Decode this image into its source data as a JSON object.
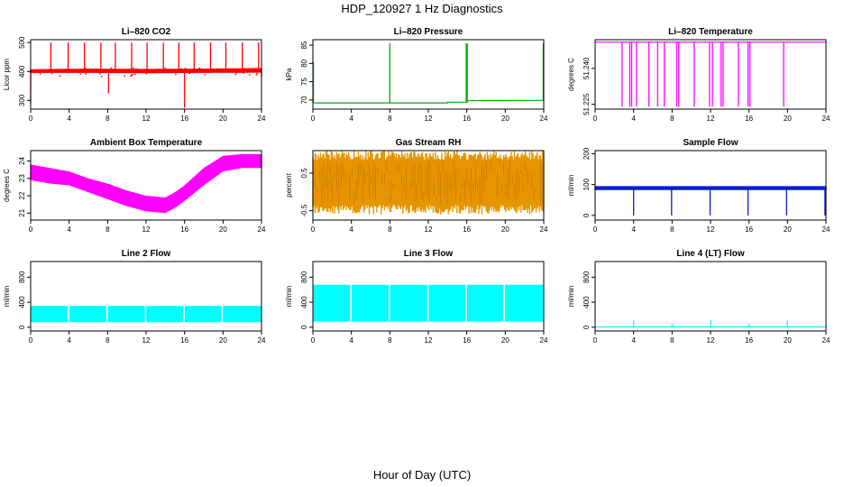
{
  "page_title": "HDP_120927  1 Hz Diagnostics",
  "x_axis_label": "Hour of Day (UTC)",
  "chart_data": [
    {
      "id": "co2",
      "type": "line",
      "title": "Li–820 CO2",
      "ylabel": "Licor ppm",
      "color": "#ff0000",
      "xlim": [
        0,
        24
      ],
      "ylim": [
        270,
        510
      ],
      "xticks": [
        0,
        4,
        8,
        12,
        16,
        20,
        24
      ],
      "yticks": [
        300,
        400,
        500
      ],
      "ytick_labels": [
        "300",
        "400",
        "500"
      ],
      "series": [
        {
          "name": "baseline",
          "kind": "band",
          "x": [
            0,
            6,
            12,
            18,
            24
          ],
          "lo": [
            395,
            395,
            394,
            395,
            396
          ],
          "hi": [
            408,
            410,
            409,
            410,
            412
          ]
        },
        {
          "name": "spikes",
          "kind": "spikes",
          "x": [
            0.0,
            2.1,
            3.9,
            5.6,
            7.3,
            8.1,
            8.8,
            10.5,
            12.1,
            13.8,
            15.4,
            16.0,
            17.0,
            18.7,
            20.3,
            22.0,
            23.7,
            24.0
          ],
          "base": [
            400,
            400,
            400,
            400,
            400,
            400,
            400,
            400,
            400,
            400,
            400,
            400,
            400,
            400,
            400,
            400,
            400,
            400
          ],
          "peak": [
            290,
            500,
            500,
            500,
            500,
            325,
            500,
            500,
            500,
            500,
            500,
            275,
            500,
            500,
            500,
            500,
            500,
            380
          ]
        }
      ]
    },
    {
      "id": "pressure",
      "type": "line",
      "title": "Li–820 Pressure",
      "ylabel": "kPa",
      "color": "#00aa00",
      "xlim": [
        0,
        24
      ],
      "ylim": [
        67.5,
        86.5
      ],
      "xticks": [
        0,
        4,
        8,
        12,
        16,
        20,
        24
      ],
      "yticks": [
        70,
        75,
        80,
        85
      ],
      "ytick_labels": [
        "70",
        "75",
        "80",
        "85"
      ],
      "series": [
        {
          "name": "level",
          "kind": "line",
          "x": [
            0.1,
            14.0,
            14.0,
            16.0,
            16.0,
            24.0
          ],
          "y": [
            69.2,
            69.2,
            69.4,
            69.4,
            69.8,
            69.9
          ]
        },
        {
          "name": "spikes",
          "kind": "spikes",
          "x": [
            0.05,
            8.0,
            15.95,
            16.05,
            23.95
          ],
          "base": [
            69.2,
            69.2,
            69.4,
            69.4,
            69.9
          ],
          "peak": [
            80.5,
            85.5,
            85.5,
            85.5,
            85.5
          ]
        }
      ]
    },
    {
      "id": "licor_temp",
      "type": "line",
      "title": "Li–820 Temperature",
      "ylabel": "degrees C",
      "color": "#ff00ff",
      "xlim": [
        0,
        24
      ],
      "ylim": [
        51.223,
        51.252
      ],
      "xticks": [
        0,
        4,
        8,
        12,
        16,
        20,
        24
      ],
      "yticks": [
        51.225,
        51.24
      ],
      "ytick_labels": [
        "51.225",
        "51.240"
      ],
      "series": [
        {
          "name": "level",
          "kind": "line",
          "x": [
            0,
            24
          ],
          "y": [
            51.251,
            51.251
          ]
        },
        {
          "name": "dips",
          "kind": "spikes",
          "x": [
            2.8,
            3.6,
            3.8,
            4.3,
            5.6,
            6.5,
            7.2,
            8.5,
            8.7,
            10.3,
            11.9,
            12.2,
            13.1,
            13.3,
            14.9,
            15.9,
            16.1,
            19.6
          ],
          "base": [
            51.251,
            51.251,
            51.251,
            51.251,
            51.251,
            51.251,
            51.251,
            51.251,
            51.251,
            51.251,
            51.251,
            51.251,
            51.251,
            51.251,
            51.251,
            51.251,
            51.251,
            51.251
          ],
          "peak": [
            51.224,
            51.224,
            51.224,
            51.224,
            51.224,
            51.224,
            51.224,
            51.224,
            51.224,
            51.224,
            51.224,
            51.224,
            51.224,
            51.224,
            51.224,
            51.224,
            51.224,
            51.224
          ]
        }
      ]
    },
    {
      "id": "ambient",
      "type": "line",
      "title": "Ambient Box Temperature",
      "ylabel": "degrees C",
      "color": "#ff00ff",
      "xlim": [
        0,
        24
      ],
      "ylim": [
        20.6,
        24.6
      ],
      "xticks": [
        0,
        4,
        8,
        12,
        16,
        20,
        24
      ],
      "yticks": [
        21,
        22,
        23,
        24
      ],
      "ytick_labels": [
        "21",
        "22",
        "23",
        "24"
      ],
      "series": [
        {
          "name": "band",
          "kind": "band",
          "x": [
            0,
            2,
            4,
            6,
            8,
            10,
            12,
            14,
            15,
            16,
            18,
            20,
            22,
            24
          ],
          "lo": [
            22.9,
            22.7,
            22.6,
            22.2,
            21.8,
            21.4,
            21.1,
            21.0,
            21.3,
            21.7,
            22.6,
            23.4,
            23.6,
            23.6
          ],
          "hi": [
            23.8,
            23.6,
            23.4,
            23.0,
            22.7,
            22.3,
            22.0,
            21.9,
            22.2,
            22.6,
            23.6,
            24.3,
            24.4,
            24.4
          ]
        }
      ]
    },
    {
      "id": "rh",
      "type": "line",
      "title": "Gas Stream RH",
      "ylabel": "percent",
      "color": "#e69500",
      "xlim": [
        0,
        24
      ],
      "ylim": [
        -0.75,
        1.1
      ],
      "xticks": [
        0,
        4,
        8,
        12,
        16,
        20,
        24
      ],
      "yticks": [
        -0.5,
        0.5
      ],
      "ytick_labels": [
        "-0.5",
        "0.5"
      ],
      "series": [
        {
          "name": "band",
          "kind": "band",
          "x": [
            0,
            24
          ],
          "lo": [
            -0.35,
            -0.35
          ],
          "hi": [
            0.85,
            0.85
          ]
        }
      ]
    },
    {
      "id": "sample_flow",
      "type": "line",
      "title": "Sample Flow",
      "ylabel": "ml/min",
      "color": "#0022cc",
      "xlim": [
        0,
        24
      ],
      "ylim": [
        -15,
        210
      ],
      "xticks": [
        0,
        4,
        8,
        12,
        16,
        20,
        24
      ],
      "yticks": [
        0,
        100,
        200
      ],
      "ytick_labels": [
        "0",
        "100",
        "200"
      ],
      "series": [
        {
          "name": "band",
          "kind": "band",
          "x": [
            0,
            24
          ],
          "lo": [
            82,
            82
          ],
          "hi": [
            95,
            95
          ]
        },
        {
          "name": "dips",
          "kind": "spikes",
          "x": [
            4.0,
            7.95,
            11.95,
            15.9,
            19.9,
            23.9
          ],
          "base": [
            85,
            85,
            85,
            85,
            85,
            85
          ],
          "peak": [
            0,
            0,
            0,
            0,
            0,
            0
          ]
        }
      ]
    },
    {
      "id": "line2",
      "type": "line",
      "title": "Line 2 Flow",
      "ylabel": "ml/min",
      "color": "#00ffff",
      "xlim": [
        0,
        24
      ],
      "ylim": [
        -60,
        1050
      ],
      "xticks": [
        0,
        4,
        8,
        12,
        16,
        20,
        24
      ],
      "yticks": [
        0,
        400,
        800
      ],
      "ytick_labels": [
        "0",
        "400",
        "800"
      ],
      "series": [
        {
          "name": "band",
          "kind": "band",
          "x": [
            0.1,
            24.0
          ],
          "lo": [
            80,
            80
          ],
          "hi": [
            340,
            340
          ]
        },
        {
          "name": "gaps",
          "kind": "gaps",
          "x": [
            3.95,
            7.95,
            11.95,
            15.95,
            19.9
          ]
        }
      ]
    },
    {
      "id": "line3",
      "type": "line",
      "title": "Line 3 Flow",
      "ylabel": "ml/min",
      "color": "#00ffff",
      "xlim": [
        0,
        24
      ],
      "ylim": [
        -60,
        1050
      ],
      "xticks": [
        0,
        4,
        8,
        12,
        16,
        20,
        24
      ],
      "yticks": [
        0,
        400,
        800
      ],
      "ytick_labels": [
        "0",
        "400",
        "800"
      ],
      "series": [
        {
          "name": "band",
          "kind": "band",
          "x": [
            0.1,
            24.0
          ],
          "lo": [
            90,
            90
          ],
          "hi": [
            680,
            680
          ]
        },
        {
          "name": "gaps",
          "kind": "gaps",
          "x": [
            3.95,
            7.95,
            11.95,
            15.95,
            19.9
          ]
        }
      ]
    },
    {
      "id": "line4",
      "type": "line",
      "title": "Line 4 (LT) Flow",
      "ylabel": "ml/min",
      "color": "#00ffff",
      "xlim": [
        0,
        24
      ],
      "ylim": [
        -60,
        1050
      ],
      "xticks": [
        0,
        4,
        8,
        12,
        16,
        20,
        24
      ],
      "yticks": [
        0,
        400,
        800
      ],
      "ytick_labels": [
        "0",
        "400",
        "800"
      ],
      "series": [
        {
          "name": "level",
          "kind": "line",
          "x": [
            0,
            24
          ],
          "y": [
            5,
            5
          ]
        },
        {
          "name": "spikes",
          "kind": "spikes",
          "x": [
            4.0,
            8.0,
            12.0,
            16.0,
            20.0,
            24.0
          ],
          "base": [
            5,
            5,
            5,
            5,
            5,
            5
          ],
          "peak": [
            110,
            60,
            110,
            60,
            110,
            60
          ]
        }
      ]
    }
  ]
}
